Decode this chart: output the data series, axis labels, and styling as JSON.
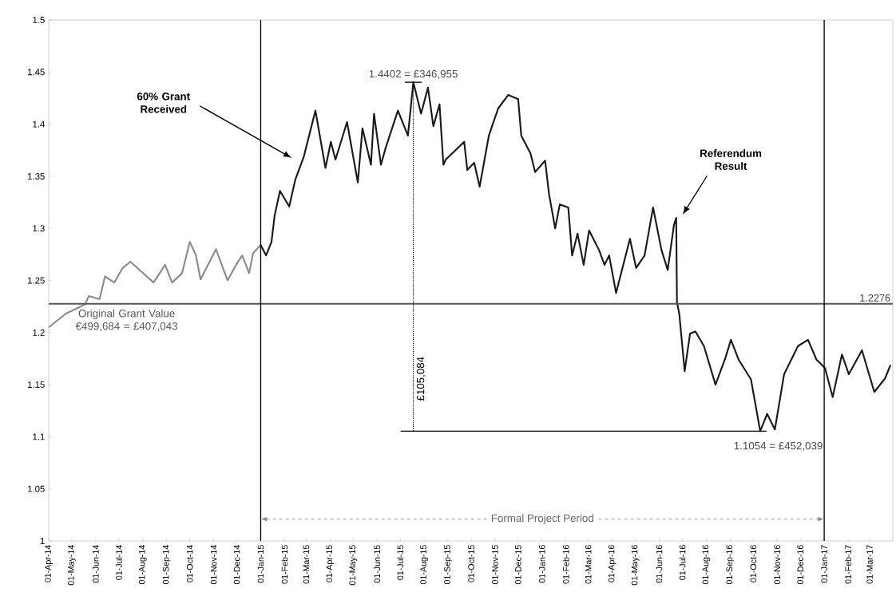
{
  "chart_data": {
    "type": "line",
    "xlim": [
      "2014-04-01",
      "2017-03-31"
    ],
    "ylim": [
      1,
      1.5
    ],
    "yticks": [
      1,
      1.05,
      1.1,
      1.15,
      1.2,
      1.25,
      1.3,
      1.35,
      1.4,
      1.45,
      1.5
    ],
    "xticks": [
      {
        "value": "2014-04-01",
        "label": "01-Apr-14"
      },
      {
        "value": "2014-05-01",
        "label": "01-May-14"
      },
      {
        "value": "2014-06-01",
        "label": "01-Jun-14"
      },
      {
        "value": "2014-07-01",
        "label": "01-Jul-14"
      },
      {
        "value": "2014-08-01",
        "label": "01-Aug-14"
      },
      {
        "value": "2014-09-01",
        "label": "01-Sep-14"
      },
      {
        "value": "2014-10-01",
        "label": "01-Oct-14"
      },
      {
        "value": "2014-11-01",
        "label": "01-Nov-14"
      },
      {
        "value": "2014-12-01",
        "label": "01-Dec-14"
      },
      {
        "value": "2015-01-01",
        "label": "01-Jan-15"
      },
      {
        "value": "2015-02-01",
        "label": "01-Feb-15"
      },
      {
        "value": "2015-03-01",
        "label": "01-Mar-15"
      },
      {
        "value": "2015-04-01",
        "label": "01-Apr-15"
      },
      {
        "value": "2015-05-01",
        "label": "01-May-15"
      },
      {
        "value": "2015-06-01",
        "label": "01-Jun-15"
      },
      {
        "value": "2015-07-01",
        "label": "01-Jul-15"
      },
      {
        "value": "2015-08-01",
        "label": "01-Aug-15"
      },
      {
        "value": "2015-09-01",
        "label": "01-Sep-15"
      },
      {
        "value": "2015-10-01",
        "label": "01-Oct-15"
      },
      {
        "value": "2015-11-01",
        "label": "01-Nov-15"
      },
      {
        "value": "2015-12-01",
        "label": "01-Dec-15"
      },
      {
        "value": "2016-01-01",
        "label": "01-Jan-16"
      },
      {
        "value": "2016-02-01",
        "label": "01-Feb-16"
      },
      {
        "value": "2016-03-01",
        "label": "01-Mar-16"
      },
      {
        "value": "2016-04-01",
        "label": "01-Apr-16"
      },
      {
        "value": "2016-05-01",
        "label": "01-May-16"
      },
      {
        "value": "2016-06-01",
        "label": "01-Jun-16"
      },
      {
        "value": "2016-07-01",
        "label": "01-Jul-16"
      },
      {
        "value": "2016-08-01",
        "label": "01-Aug-16"
      },
      {
        "value": "2016-09-01",
        "label": "01-Sep-16"
      },
      {
        "value": "2016-10-01",
        "label": "01-Oct-16"
      },
      {
        "value": "2016-11-01",
        "label": "01-Nov-16"
      },
      {
        "value": "2016-12-01",
        "label": "01-Dec-16"
      },
      {
        "value": "2017-01-01",
        "label": "01-Jan-17"
      },
      {
        "value": "2017-02-01",
        "label": "01-Feb-17"
      },
      {
        "value": "2017-03-01",
        "label": "01-Mar-17"
      }
    ],
    "grid": false,
    "line_style": "solid",
    "series": [
      {
        "color": "#8c8c8c",
        "x": [
          "2014-04-01",
          "2014-04-23",
          "2014-05-18",
          "2014-05-23",
          "2014-06-06",
          "2014-06-13",
          "2014-06-25",
          "2014-07-06",
          "2014-07-16",
          "2014-07-28",
          "2014-08-15",
          "2014-08-30",
          "2014-09-08",
          "2014-09-21",
          "2014-10-01",
          "2014-10-09",
          "2014-10-15",
          "2014-11-04",
          "2014-11-19",
          "2014-11-30",
          "2014-12-08",
          "2014-12-17",
          "2014-12-22",
          "2015-01-01"
        ],
        "values": [
          1.205,
          1.218,
          1.227,
          1.235,
          1.232,
          1.254,
          1.248,
          1.262,
          1.268,
          1.26,
          1.248,
          1.265,
          1.248,
          1.257,
          1.287,
          1.274,
          1.251,
          1.28,
          1.25,
          1.265,
          1.274,
          1.257,
          1.276,
          1.284
        ]
      },
      {
        "color": "#1a1a1a",
        "x": [
          "2015-01-01",
          "2015-01-08",
          "2015-01-15",
          "2015-01-19",
          "2015-01-26",
          "2015-02-07",
          "2015-02-15",
          "2015-02-26",
          "2015-03-13",
          "2015-03-26",
          "2015-04-02",
          "2015-04-08",
          "2015-04-23",
          "2015-05-07",
          "2015-05-13",
          "2015-05-24",
          "2015-05-28",
          "2015-06-06",
          "2015-06-12",
          "2015-06-28",
          "2015-07-11",
          "2015-07-18",
          "2015-07-28",
          "2015-08-06",
          "2015-08-13",
          "2015-08-21",
          "2015-08-26",
          "2015-08-29",
          "2015-09-22",
          "2015-09-26",
          "2015-10-05",
          "2015-10-12",
          "2015-10-24",
          "2015-11-05",
          "2015-11-18",
          "2015-12-01",
          "2015-12-05",
          "2015-12-17",
          "2015-12-23",
          "2016-01-05",
          "2016-01-10",
          "2016-01-18",
          "2016-01-24",
          "2016-02-04",
          "2016-02-09",
          "2016-02-16",
          "2016-02-24",
          "2016-03-02",
          "2016-03-15",
          "2016-03-22",
          "2016-03-28",
          "2016-04-06",
          "2016-04-24",
          "2016-05-02",
          "2016-05-13",
          "2016-05-24",
          "2016-06-04",
          "2016-06-12",
          "2016-06-20",
          "2016-06-23",
          "2016-06-24",
          "2016-06-27",
          "2016-07-04",
          "2016-07-11",
          "2016-07-18",
          "2016-07-29",
          "2016-08-13",
          "2016-08-26",
          "2016-09-02",
          "2016-09-12",
          "2016-09-28",
          "2016-10-10",
          "2016-10-19",
          "2016-10-29",
          "2016-11-10",
          "2016-11-28",
          "2016-12-11",
          "2016-12-22",
          "2017-01-02",
          "2017-01-12",
          "2017-01-24",
          "2017-02-02",
          "2017-02-19",
          "2017-03-07",
          "2017-03-21",
          "2017-03-28"
        ],
        "values": [
          1.284,
          1.274,
          1.287,
          1.312,
          1.336,
          1.321,
          1.347,
          1.369,
          1.413,
          1.358,
          1.383,
          1.366,
          1.402,
          1.344,
          1.396,
          1.361,
          1.41,
          1.361,
          1.377,
          1.413,
          1.389,
          1.4402,
          1.41,
          1.435,
          1.398,
          1.419,
          1.361,
          1.366,
          1.383,
          1.356,
          1.363,
          1.34,
          1.389,
          1.415,
          1.428,
          1.424,
          1.389,
          1.372,
          1.354,
          1.365,
          1.333,
          1.3,
          1.323,
          1.32,
          1.274,
          1.295,
          1.265,
          1.298,
          1.279,
          1.265,
          1.274,
          1.238,
          1.29,
          1.262,
          1.274,
          1.32,
          1.279,
          1.26,
          1.303,
          1.31,
          1.229,
          1.218,
          1.163,
          1.199,
          1.201,
          1.187,
          1.15,
          1.176,
          1.193,
          1.174,
          1.155,
          1.1054,
          1.122,
          1.107,
          1.16,
          1.187,
          1.193,
          1.174,
          1.166,
          1.138,
          1.179,
          1.16,
          1.183,
          1.143,
          1.156,
          1.169
        ]
      }
    ],
    "ref_lines": [
      {
        "axis": "y",
        "value": 1.2276,
        "label": "1.2276",
        "color": "#555555"
      },
      {
        "axis": "x",
        "value": "2015-01-01",
        "color": "#000000"
      },
      {
        "axis": "x",
        "value": "2017-01-01",
        "color": "#000000"
      }
    ],
    "annotations": [
      "60% Grant Received",
      {
        "text": "1.4402 = £346,955",
        "x": "2015-07-18",
        "y": 1.4402
      },
      "£105,084",
      {
        "text": "1.1054 = £452,039",
        "x": "2016-10-10",
        "y": 1.1054
      },
      "Referendum Result",
      "Original Grant Value €499,684 = £407,043",
      "Formal Project Period"
    ]
  }
}
